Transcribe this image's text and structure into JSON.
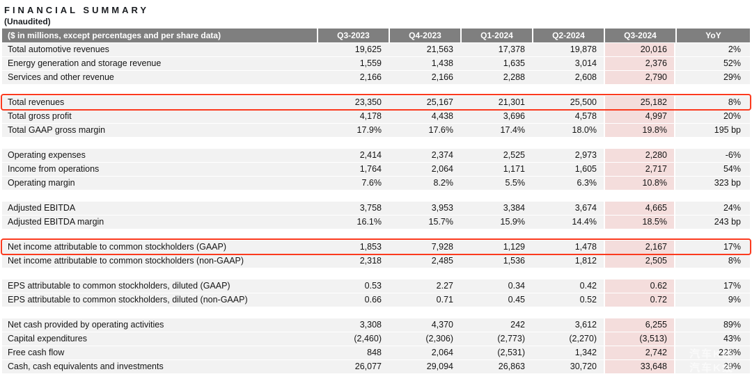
{
  "page": {
    "title": "FINANCIAL SUMMARY",
    "subtitle": "(Unaudited)"
  },
  "colors": {
    "header_gray": "#7f7f7f",
    "row_gray": "#f2f2f2",
    "highlight_pink": "#f4dddc",
    "callout_red": "#fb3a1e"
  },
  "table": {
    "header": {
      "label": "($ in millions, except percentages and per share data)",
      "columns": [
        "Q3-2023",
        "Q4-2023",
        "Q1-2024",
        "Q2-2024",
        "Q3-2024",
        "YoY"
      ]
    },
    "highlight_column": "Q3-2024",
    "rows": [
      {
        "label": "Total automotive revenues",
        "values": [
          "19,625",
          "21,563",
          "17,378",
          "19,878",
          "20,016",
          "2%"
        ],
        "boxed": false
      },
      {
        "label": "Energy generation and storage revenue",
        "values": [
          "1,559",
          "1,438",
          "1,635",
          "3,014",
          "2,376",
          "52%"
        ],
        "boxed": false
      },
      {
        "label": "Services and other revenue",
        "values": [
          "2,166",
          "2,166",
          "2,288",
          "2,608",
          "2,790",
          "29%"
        ],
        "boxed": false
      },
      {
        "blank": true
      },
      {
        "label": "Total revenues",
        "values": [
          "23,350",
          "25,167",
          "21,301",
          "25,500",
          "25,182",
          "8%"
        ],
        "boxed": true
      },
      {
        "label": "Total gross profit",
        "values": [
          "4,178",
          "4,438",
          "3,696",
          "4,578",
          "4,997",
          "20%"
        ],
        "boxed": false
      },
      {
        "label": "Total GAAP gross margin",
        "values": [
          "17.9%",
          "17.6%",
          "17.4%",
          "18.0%",
          "19.8%",
          "195 bp"
        ],
        "boxed": false
      },
      {
        "blank": true
      },
      {
        "label": "Operating expenses",
        "values": [
          "2,414",
          "2,374",
          "2,525",
          "2,973",
          "2,280",
          "-6%"
        ],
        "boxed": false
      },
      {
        "label": "Income from operations",
        "values": [
          "1,764",
          "2,064",
          "1,171",
          "1,605",
          "2,717",
          "54%"
        ],
        "boxed": false
      },
      {
        "label": "Operating margin",
        "values": [
          "7.6%",
          "8.2%",
          "5.5%",
          "6.3%",
          "10.8%",
          "323 bp"
        ],
        "boxed": false
      },
      {
        "blank": true
      },
      {
        "label": "Adjusted EBITDA",
        "values": [
          "3,758",
          "3,953",
          "3,384",
          "3,674",
          "4,665",
          "24%"
        ],
        "boxed": false
      },
      {
        "label": "Adjusted EBITDA margin",
        "values": [
          "16.1%",
          "15.7%",
          "15.9%",
          "14.4%",
          "18.5%",
          "243 bp"
        ],
        "boxed": false
      },
      {
        "blank": true
      },
      {
        "label": "Net income attributable to common stockholders (GAAP)",
        "values": [
          "1,853",
          "7,928",
          "1,129",
          "1,478",
          "2,167",
          "17%"
        ],
        "boxed": true
      },
      {
        "label": "Net income attributable to common stockholders (non-GAAP)",
        "values": [
          "2,318",
          "2,485",
          "1,536",
          "1,812",
          "2,505",
          "8%"
        ],
        "boxed": false
      },
      {
        "blank": true
      },
      {
        "label": "EPS attributable to common stockholders, diluted (GAAP)",
        "values": [
          "0.53",
          "2.27",
          "0.34",
          "0.42",
          "0.62",
          "17%"
        ],
        "boxed": false
      },
      {
        "label": "EPS attributable to common stockholders, diluted (non-GAAP)",
        "values": [
          "0.66",
          "0.71",
          "0.45",
          "0.52",
          "0.72",
          "9%"
        ],
        "boxed": false
      },
      {
        "blank": true
      },
      {
        "label": "Net cash provided by operating activities",
        "values": [
          "3,308",
          "4,370",
          "242",
          "3,612",
          "6,255",
          "89%"
        ],
        "boxed": false
      },
      {
        "label": "Capital expenditures",
        "values": [
          "(2,460)",
          "(2,306)",
          "(2,773)",
          "(2,270)",
          "(3,513)",
          "43%"
        ],
        "boxed": false
      },
      {
        "label": "Free cash flow",
        "values": [
          "848",
          "2,064",
          "(2,531)",
          "1,342",
          "2,742",
          "223%"
        ],
        "boxed": false
      },
      {
        "label": "Cash, cash equivalents and investments",
        "values": [
          "26,077",
          "29,094",
          "26,863",
          "30,720",
          "33,648",
          "29%"
        ],
        "boxed": false
      }
    ]
  },
  "watermark": {
    "line1": "汽车K线",
    "line2": "汽车K线"
  }
}
